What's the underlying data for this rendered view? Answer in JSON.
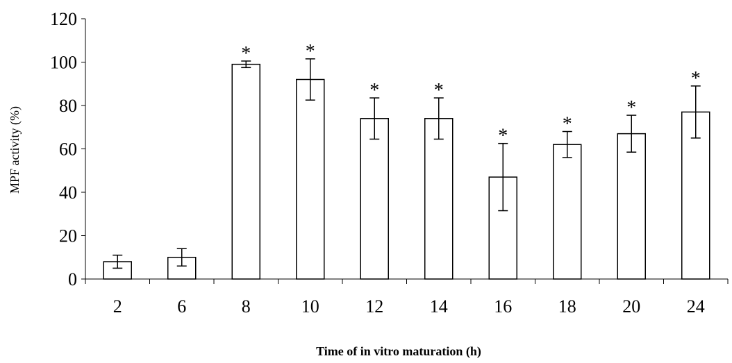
{
  "chart_data": {
    "type": "bar",
    "title": "",
    "xlabel": "Time of in vitro maturation (h)",
    "ylabel": "MPF activity (%)",
    "ylim": [
      0,
      120
    ],
    "yticks": [
      0,
      20,
      40,
      60,
      80,
      100,
      120
    ],
    "categories": [
      "2",
      "6",
      "8",
      "10",
      "12",
      "14",
      "16",
      "18",
      "20",
      "24"
    ],
    "values": [
      8,
      10,
      99,
      92,
      74,
      74,
      47,
      62,
      67,
      77
    ],
    "errors": [
      3,
      4,
      1.5,
      9.5,
      9.5,
      9.5,
      15.5,
      6,
      8.5,
      12
    ],
    "significance": [
      "",
      "",
      "*",
      "*",
      "*",
      "*",
      "*",
      "*",
      "*",
      "*"
    ],
    "grid": false,
    "bar_fill": "#ffffff",
    "bar_stroke": "#000000"
  }
}
